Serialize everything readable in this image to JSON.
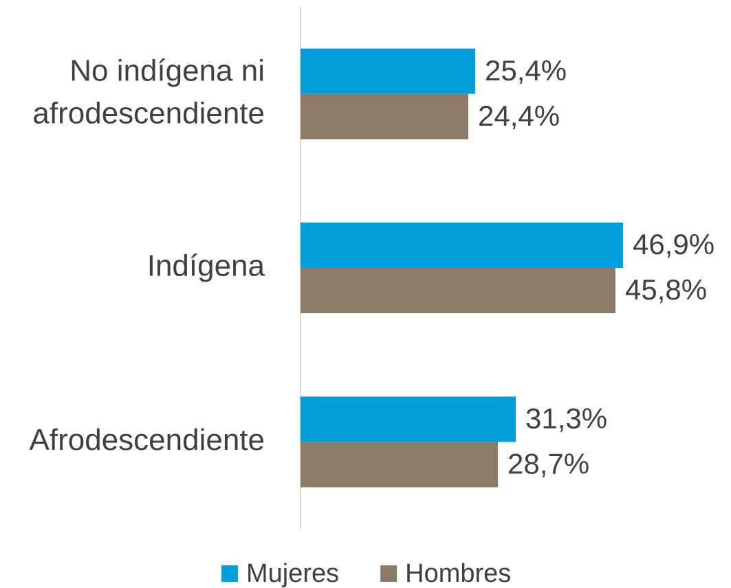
{
  "chart_data": {
    "type": "barh",
    "categories": [
      "No indígena ni afrodescendiente",
      "Indígena",
      "Afrodescendiente"
    ],
    "series": [
      {
        "name": "Mujeres",
        "color": "#009fda",
        "values": [
          25.4,
          46.9,
          31.3
        ],
        "value_labels": [
          "25,4%",
          "46,9%",
          "31,3%"
        ]
      },
      {
        "name": "Hombres",
        "color": "#8a7a66",
        "values": [
          24.4,
          45.8,
          28.7
        ],
        "value_labels": [
          "24,4%",
          "45,8%",
          "28,7%"
        ]
      }
    ],
    "xlim": [
      0,
      50
    ],
    "legend": "bottom"
  }
}
